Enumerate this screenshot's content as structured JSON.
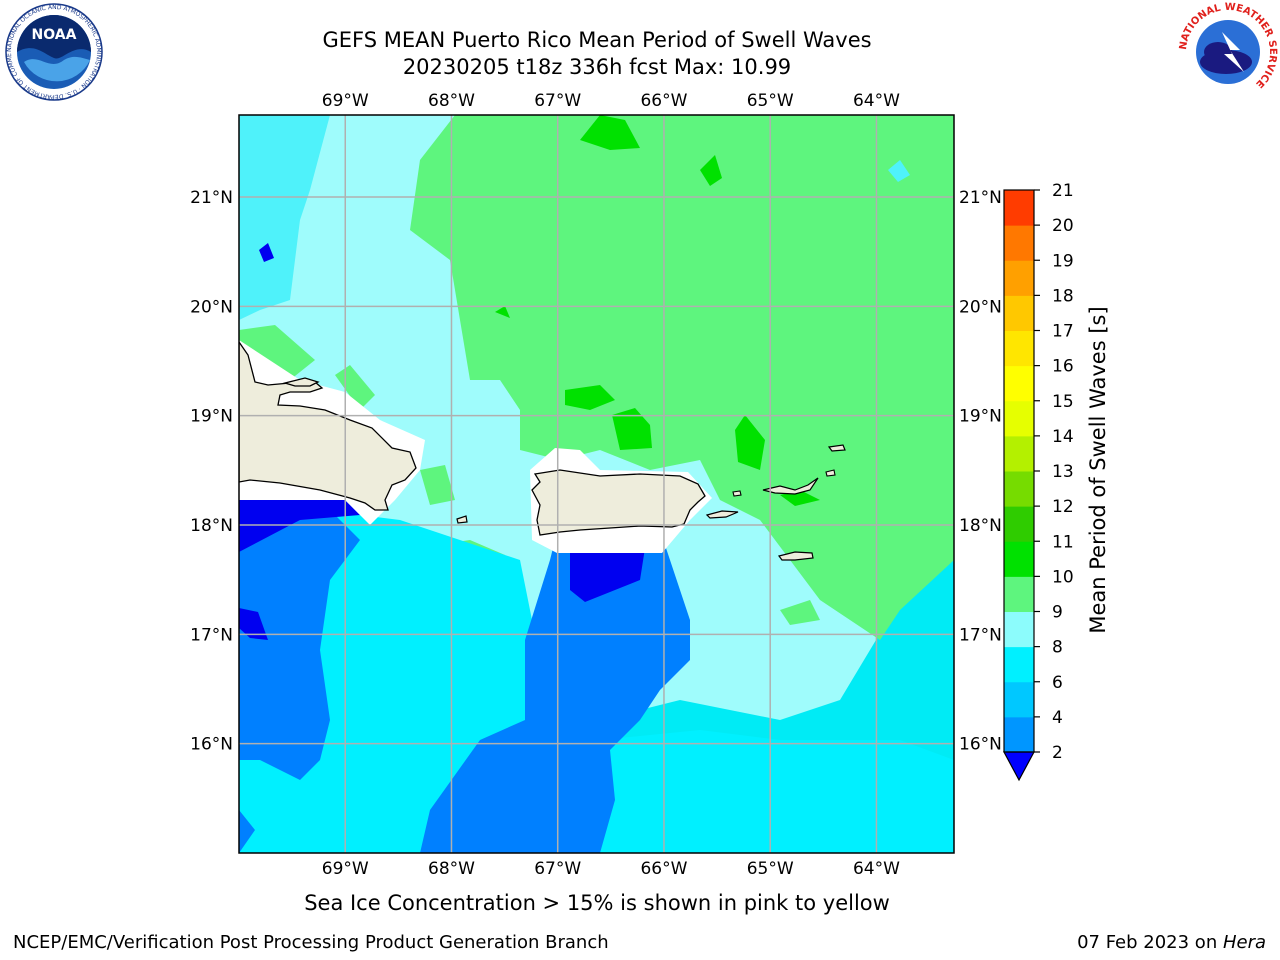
{
  "title": {
    "line1": "GEFS MEAN Puerto Rico Mean Period of Swell Waves",
    "line2": "20230205 t18z 336h fcst   Max: 10.99"
  },
  "map": {
    "lon_range": [
      -70,
      -63.27
    ],
    "lat_range": [
      15,
      21.75
    ],
    "lon_ticks": [
      {
        "value": -69,
        "label": "69°W"
      },
      {
        "value": -68,
        "label": "68°W"
      },
      {
        "value": -67,
        "label": "67°W"
      },
      {
        "value": -66,
        "label": "66°W"
      },
      {
        "value": -65,
        "label": "65°W"
      },
      {
        "value": -64,
        "label": "64°W"
      }
    ],
    "lat_ticks": [
      {
        "value": 16,
        "label": "16°N"
      },
      {
        "value": 17,
        "label": "17°N"
      },
      {
        "value": 18,
        "label": "18°N"
      },
      {
        "value": 19,
        "label": "19°N"
      },
      {
        "value": 20,
        "label": "20°N"
      },
      {
        "value": 21,
        "label": "21°N"
      }
    ],
    "grid": true,
    "land_color": "#eeeddc",
    "ocean_base_color": "#00ebf5"
  },
  "colorbar": {
    "label": "Mean Period of Swell Waves [s]",
    "ticks": [
      "2",
      "4",
      "6",
      "8",
      "9",
      "10",
      "11",
      "12",
      "13",
      "14",
      "15",
      "16",
      "17",
      "18",
      "19",
      "20",
      "21"
    ],
    "colors": [
      "#0096ff",
      "#00c8ff",
      "#00f0ff",
      "#8cfcfc",
      "#5ef57e",
      "#00e100",
      "#2fcc00",
      "#76dc00",
      "#b4f000",
      "#e6ff00",
      "#ffff00",
      "#ffe600",
      "#ffc800",
      "#ffa000",
      "#ff7800",
      "#ff3c00",
      "#ff0000"
    ],
    "extend_color": "#0000ff"
  },
  "footer": {
    "note": "Sea Ice Concentration > 15% is shown in pink to yellow",
    "credit": "NCEP/EMC/Verification Post Processing Product Generation Branch",
    "date_prefix": "07 Feb 2023 on ",
    "date_host": "Hera"
  },
  "logos": {
    "noaa": "NOAA",
    "noaa_ring_text": "NATIONAL OCEANIC AND ATMOSPHERIC ADMINISTRATION · U.S. DEPARTMENT OF COMMERCE",
    "nws_ring_text": "NATIONAL WEATHER SERVICE"
  }
}
